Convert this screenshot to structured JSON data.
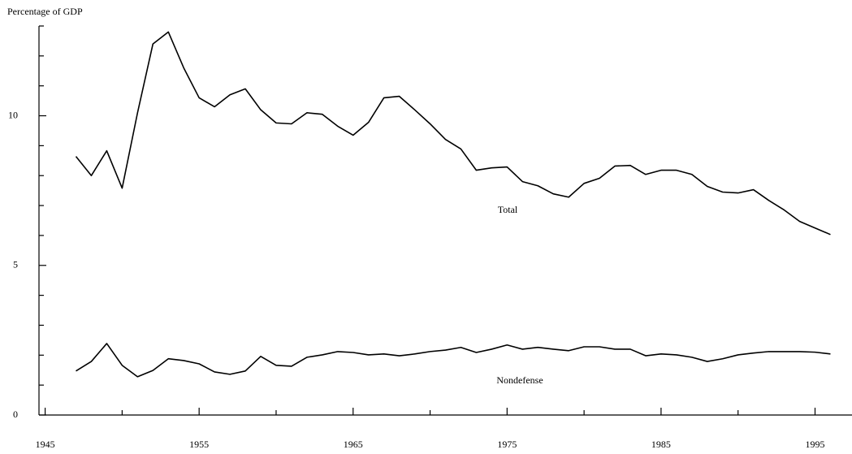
{
  "chart_data": {
    "type": "line",
    "y_label": "Percentage of GDP",
    "x": [
      1947,
      1948,
      1949,
      1950,
      1951,
      1952,
      1953,
      1954,
      1955,
      1956,
      1957,
      1958,
      1959,
      1960,
      1961,
      1962,
      1963,
      1964,
      1965,
      1966,
      1967,
      1968,
      1969,
      1970,
      1971,
      1972,
      1973,
      1974,
      1975,
      1976,
      1977,
      1978,
      1979,
      1980,
      1981,
      1982,
      1983,
      1984,
      1985,
      1986,
      1987,
      1988,
      1989,
      1990,
      1991,
      1992,
      1993,
      1994,
      1995,
      1996
    ],
    "series": [
      {
        "name": "Total",
        "color": "#000000",
        "values": [
          8.64,
          8.0,
          8.83,
          7.58,
          10.1,
          12.4,
          12.8,
          11.6,
          10.6,
          10.3,
          10.7,
          10.9,
          10.2,
          9.76,
          9.73,
          10.1,
          10.05,
          9.65,
          9.35,
          9.78,
          10.6,
          10.65,
          10.2,
          9.73,
          9.21,
          8.89,
          8.18,
          8.26,
          8.29,
          7.8,
          7.66,
          7.39,
          7.28,
          7.74,
          7.91,
          8.32,
          8.34,
          8.04,
          8.18,
          8.18,
          8.04,
          7.64,
          7.45,
          7.42,
          7.53,
          7.17,
          6.85,
          6.47,
          6.25,
          6.03
        ]
      },
      {
        "name": "Nondefense",
        "color": "#000000",
        "values": [
          1.47,
          1.79,
          2.39,
          1.66,
          1.28,
          1.49,
          1.88,
          1.82,
          1.71,
          1.44,
          1.36,
          1.47,
          1.96,
          1.66,
          1.63,
          1.93,
          2.01,
          2.12,
          2.09,
          2.01,
          2.04,
          1.98,
          2.04,
          2.12,
          2.17,
          2.26,
          2.09,
          2.2,
          2.34,
          2.2,
          2.26,
          2.2,
          2.15,
          2.28,
          2.28,
          2.2,
          2.2,
          1.98,
          2.04,
          2.01,
          1.93,
          1.79,
          1.88,
          2.01,
          2.07,
          2.12,
          2.12,
          2.12,
          2.1,
          2.04
        ]
      }
    ],
    "xlim": [
      1944.6,
      1997.4
    ],
    "xticks": [
      1945,
      1955,
      1965,
      1975,
      1985,
      1995
    ],
    "xminorticks": [
      1950,
      1960,
      1970,
      1980,
      1990
    ],
    "ylim": [
      0,
      13
    ],
    "yticks": [
      0,
      5,
      10
    ],
    "yminorticks": [
      1,
      2,
      3,
      4,
      6,
      7,
      8,
      9,
      11,
      12,
      13
    ],
    "grid": false
  }
}
